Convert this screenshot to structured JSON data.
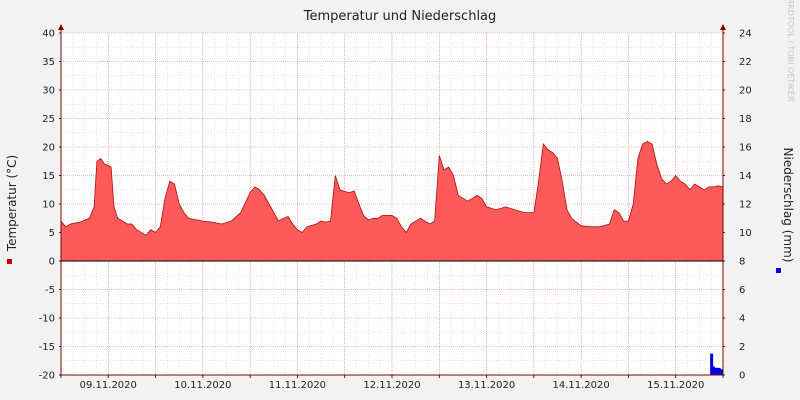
{
  "chart_data": {
    "type": "area",
    "title": "Temperatur und Niederschlag",
    "ylabel_left": "Temperatur (°C)",
    "ylabel_right": "Niederschlag (mm)",
    "watermark": "RRDTOOL / TOBI OETIKER",
    "ylim_left": [
      -20,
      40
    ],
    "ylim_right": [
      0,
      24
    ],
    "yticks_left": [
      40,
      35,
      30,
      25,
      20,
      15,
      10,
      5,
      0,
      -5,
      -10,
      -15,
      -20
    ],
    "yticks_right": [
      24,
      22,
      20,
      18,
      16,
      14,
      12,
      10,
      8,
      6,
      4,
      2,
      0
    ],
    "xlim": [
      0,
      7.0
    ],
    "date_labels": [
      "09.11.2020",
      "10.11.2020",
      "11.11.2020",
      "12.11.2020",
      "13.11.2020",
      "14.11.2020",
      "15.11.2020"
    ],
    "grid": true,
    "colors": {
      "temperature": "#ff5a5a",
      "temperature_line": "#aa1111",
      "precipitation": "#0000dd",
      "grid": "#e8a0a0",
      "axis": "#800000",
      "plot_bg": "#ffffff"
    },
    "series": [
      {
        "name": "Temperatur",
        "axis": "left",
        "x": [
          0,
          0.05,
          0.1,
          0.2,
          0.3,
          0.35,
          0.38,
          0.42,
          0.46,
          0.5,
          0.53,
          0.56,
          0.6,
          0.65,
          0.7,
          0.75,
          0.8,
          0.9,
          0.95,
          1.0,
          1.05,
          1.1,
          1.15,
          1.2,
          1.25,
          1.3,
          1.35,
          1.4,
          1.45,
          1.5,
          1.6,
          1.7,
          1.8,
          1.9,
          2.0,
          2.05,
          2.1,
          2.15,
          2.2,
          2.25,
          2.3,
          2.35,
          2.4,
          2.45,
          2.5,
          2.55,
          2.6,
          2.7,
          2.75,
          2.8,
          2.85,
          2.9,
          2.95,
          3.0,
          3.05,
          3.1,
          3.15,
          3.2,
          3.25,
          3.3,
          3.35,
          3.4,
          3.45,
          3.5,
          3.55,
          3.6,
          3.65,
          3.7,
          3.8,
          3.9,
          3.95,
          4.0,
          4.02,
          4.05,
          4.1,
          4.15,
          4.2,
          4.25,
          4.3,
          4.35,
          4.4,
          4.45,
          4.5,
          4.6,
          4.7,
          4.8,
          4.9,
          5.0,
          5.05,
          5.1,
          5.15,
          5.2,
          5.25,
          5.3,
          5.35,
          5.4,
          5.45,
          5.5,
          5.6,
          5.7,
          5.8,
          5.85,
          5.9,
          5.95,
          6.0,
          6.05,
          6.1,
          6.15,
          6.2,
          6.25,
          6.3,
          6.35,
          6.4,
          6.45,
          6.5,
          6.55,
          6.6,
          6.65,
          6.7,
          6.75,
          6.8,
          6.85,
          6.9,
          6.95,
          7.0
        ],
        "values": [
          7.0,
          6.0,
          6.5,
          6.8,
          7.5,
          9.5,
          17.5,
          18.0,
          17.0,
          16.8,
          16.5,
          9.5,
          7.5,
          7.0,
          6.5,
          6.5,
          5.5,
          4.5,
          5.5,
          5.0,
          6.0,
          11.0,
          14.0,
          13.5,
          10.0,
          8.5,
          7.5,
          7.3,
          7.2,
          7.0,
          6.8,
          6.5,
          7.0,
          8.5,
          12.0,
          13.0,
          12.5,
          11.5,
          10.0,
          8.5,
          7.0,
          7.5,
          7.8,
          6.5,
          5.5,
          5.0,
          6.0,
          6.5,
          7.0,
          6.8,
          7.0,
          15.0,
          12.5,
          12.2,
          12.0,
          12.3,
          10.0,
          8.0,
          7.2,
          7.5,
          7.5,
          8.0,
          8.0,
          8.0,
          7.5,
          6.0,
          5.0,
          6.5,
          7.5,
          6.5,
          7.0,
          18.5,
          17.5,
          16.0,
          16.5,
          15.0,
          11.5,
          11.0,
          10.5,
          11.0,
          11.5,
          11.0,
          9.5,
          9.0,
          9.5,
          9.0,
          8.5,
          8.5,
          14.0,
          20.5,
          19.5,
          19.0,
          18.0,
          14.0,
          9.0,
          7.5,
          6.8,
          6.2,
          6.0,
          6.0,
          6.5,
          9.0,
          8.5,
          7.0,
          7.0,
          10.0,
          18.0,
          20.5,
          21.0,
          20.5,
          17.0,
          14.5,
          13.5,
          14.0,
          15.0,
          14.0,
          13.5,
          12.5,
          13.5,
          13.0,
          12.5,
          13.0,
          13.0,
          13.2,
          13.0
        ]
      },
      {
        "name": "Niederschlag",
        "axis": "right",
        "type": "bar",
        "x": [
          6.88,
          6.9,
          6.92,
          6.94,
          6.96,
          6.98
        ],
        "values": [
          1.5,
          0.6,
          0.5,
          0.5,
          0.5,
          0.4
        ]
      }
    ]
  }
}
